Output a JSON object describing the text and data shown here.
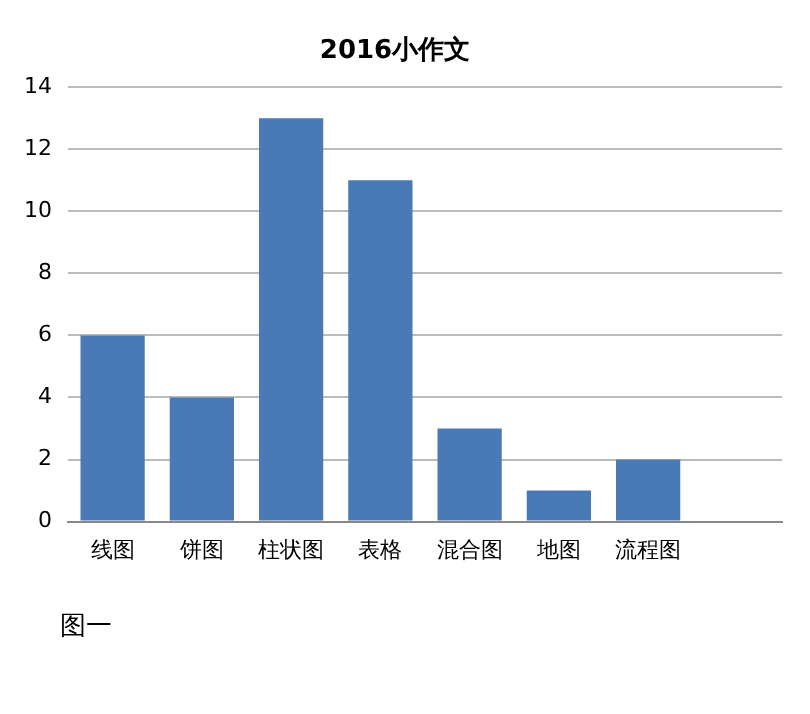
{
  "chart_data": {
    "type": "bar",
    "title": "2016小作文",
    "categories": [
      "线图",
      "饼图",
      "柱状图",
      "表格",
      "混合图",
      "地图",
      "流程图",
      null
    ],
    "values": [
      6,
      4,
      13,
      11,
      3,
      1,
      2,
      null
    ],
    "color": "#4a7ab5",
    "ylim": [
      0,
      14
    ],
    "yticks": [
      0,
      2,
      4,
      6,
      8,
      10,
      12,
      14
    ],
    "grid": "y",
    "legend": false,
    "annotations": [
      "图一"
    ]
  }
}
